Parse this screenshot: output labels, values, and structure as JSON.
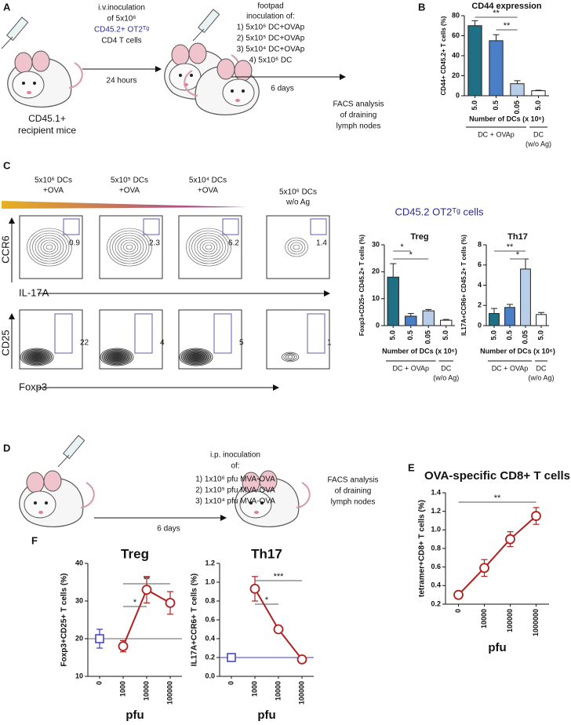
{
  "panel_labels": [
    "A",
    "B",
    "C",
    "D",
    "E",
    "F"
  ],
  "panel_a": {
    "step1": [
      "i.v.inoculation",
      "of 5x10⁶",
      "CD45.2+ OT2ᵀᵍ",
      "CD4 T cells"
    ],
    "interval1": "24 hours",
    "step2": [
      "footpad",
      "inoculation of:",
      "1) 5x10⁶ DC+OVAp",
      "2) 5x10⁵ DC+OVAp",
      "3) 5x10⁴ DC+OVAp",
      "4) 5x10⁶ DC"
    ],
    "interval2": "6 days",
    "readout": [
      "FACS analysis",
      "of draining",
      "lymph nodes"
    ],
    "mice": [
      "CD45.1+",
      "recipient mice"
    ]
  },
  "panel_c": {
    "conditions": [
      [
        "5x10⁶ DCs",
        "+OVA"
      ],
      [
        "5x10⁵ DCs",
        "+OVA"
      ],
      [
        "5x10⁴ DCs",
        "+OVA"
      ],
      [
        "5x10⁶ DCs",
        "w/o Ag"
      ]
    ],
    "top_axes": [
      "CCR6",
      "IL-17A"
    ],
    "bottom_axes": [
      "CD25",
      "Foxp3"
    ],
    "top_gates": [
      0.9,
      2.3,
      6.2,
      1.4
    ],
    "bottom_gates": [
      22,
      4,
      5,
      1
    ],
    "population": "CD45.2 OT2ᵀᵍ cells"
  },
  "panel_d": {
    "step": [
      "i.p. inoculation",
      "of:",
      "1) 1x10⁶ pfu MVA-OVA",
      "2) 1x10⁵ pfu MVA-OVA",
      "3) 1x10⁴ pfu MVA-OVA"
    ],
    "interval": "6 days",
    "readout": [
      "FACS analysis",
      "of draining",
      "lymph nodes"
    ]
  },
  "chart_data": [
    {
      "type": "bar",
      "title": "CD44 expression",
      "y_label": "CD44+ CD45.2+ T cells (%)",
      "x_label": "Number of DCs (x 10⁶)",
      "categories": [
        "5.0",
        "0.5",
        "0.05",
        "5.0"
      ],
      "values": [
        70,
        55,
        12,
        5
      ],
      "errors": [
        5,
        6,
        3,
        0.5
      ],
      "colors": [
        "#1f6f85",
        "#4a7fc8",
        "#b8cde8",
        "#ffffff"
      ],
      "group_labels": [
        [
          "DC + OVAp"
        ],
        [
          "DC",
          "(w/o Ag)"
        ]
      ],
      "ylim": [
        0,
        80
      ],
      "yticks": [
        0,
        20,
        40,
        60,
        80
      ],
      "annotations": [
        "**",
        "**"
      ]
    },
    {
      "type": "bar",
      "title": "Treg",
      "y_label": "Foxp3+CD25+ CD45.2+ T cells (%)",
      "x_label": "Number of DCs (x 10⁶)",
      "categories": [
        "5.0",
        "0.5",
        "0.05",
        "5.0"
      ],
      "values": [
        18,
        3.5,
        5.5,
        2
      ],
      "errors": [
        5,
        1,
        0.5,
        0.3
      ],
      "colors": [
        "#1f6f85",
        "#4a7fc8",
        "#b8cde8",
        "#ffffff"
      ],
      "group_labels": [
        [
          "DC + OVAp"
        ],
        [
          "DC",
          "(w/o Ag)"
        ]
      ],
      "ylim": [
        0,
        30
      ],
      "yticks": [
        0,
        10,
        20,
        30
      ],
      "annotations": [
        "*",
        "*"
      ]
    },
    {
      "type": "bar",
      "title": "Th17",
      "y_label": "IL17A+CCR6+ CD45.2+ T cells (%)",
      "x_label": "Number of DCs (x 10⁶)",
      "categories": [
        "5.0",
        "0.5",
        "0.05",
        "5.0"
      ],
      "values": [
        1.2,
        1.8,
        5.6,
        1.1
      ],
      "errors": [
        0.5,
        0.3,
        1.0,
        0.2
      ],
      "colors": [
        "#1f6f85",
        "#4a7fc8",
        "#b8cde8",
        "#ffffff"
      ],
      "group_labels": [
        [
          "DC + OVAp"
        ],
        [
          "DC",
          "(w/o Ag)"
        ]
      ],
      "ylim": [
        0,
        8
      ],
      "yticks": [
        0,
        2,
        4,
        6,
        8
      ],
      "annotations": [
        "**",
        "*"
      ]
    },
    {
      "type": "line",
      "title": "OVA-specific CD8+ T cells",
      "y_label": "tetramer+CD8+ T cells (%)",
      "x_label": "pfu",
      "categories": [
        "0",
        "10000",
        "100000",
        "1000000"
      ],
      "series": [
        {
          "color": "#b02020",
          "marker": "circle",
          "values": [
            0.3,
            0.59,
            0.9,
            1.15
          ],
          "errors": [
            0,
            0.09,
            0.08,
            0.09
          ]
        }
      ],
      "ylim": [
        0.2,
        1.4
      ],
      "yticks": [
        0.2,
        0.4,
        0.6,
        0.8,
        {
          "value": 1,
          "label": "1.0"
        },
        1.2,
        1.4
      ],
      "annotations": [
        "**"
      ]
    },
    {
      "type": "line",
      "title": "Treg",
      "y_label": "Foxp3+CD25+ T cells (%)",
      "x_label": "pfu",
      "categories": [
        "0",
        "1000",
        "10000",
        "100000"
      ],
      "series": [
        {
          "color": "#3a3ac0",
          "marker": "square",
          "values": [
            20,
            null,
            null,
            null
          ],
          "errors": [
            2.5,
            null,
            null,
            null
          ]
        },
        {
          "color": "#b02020",
          "marker": "circle",
          "values": [
            null,
            18,
            33,
            29.5
          ],
          "errors": [
            null,
            1.5,
            3.5,
            3
          ]
        }
      ],
      "reference_line": 20,
      "reference_color": "#666666",
      "ylim": [
        10,
        40
      ],
      "yticks": [
        10,
        20,
        30,
        40
      ],
      "annotations": [
        "**",
        "*"
      ]
    },
    {
      "type": "line",
      "title": "Th17",
      "y_label": "IL17A+CCR6+ T cells (%)",
      "x_label": "pfu",
      "categories": [
        "0",
        "1000",
        "10000",
        "100000"
      ],
      "series": [
        {
          "color": "#3a3ac0",
          "marker": "square",
          "values": [
            0.2,
            null,
            null,
            null
          ],
          "errors": [
            0,
            null,
            null,
            null
          ]
        },
        {
          "color": "#b02020",
          "marker": "circle",
          "values": [
            null,
            0.93,
            0.5,
            0.18
          ],
          "errors": [
            null,
            0.13,
            0.01,
            0.02
          ]
        }
      ],
      "reference_line": 0.2,
      "reference_color": "#3a3ac0",
      "ylim": [
        0,
        1.2
      ],
      "yticks": [
        {
          "value": 0,
          "label": "0.0"
        },
        0.2,
        0.4,
        0.6,
        0.8,
        {
          "value": 1,
          "label": "1.0"
        },
        1.2
      ],
      "annotations": [
        "***",
        "*"
      ]
    }
  ]
}
